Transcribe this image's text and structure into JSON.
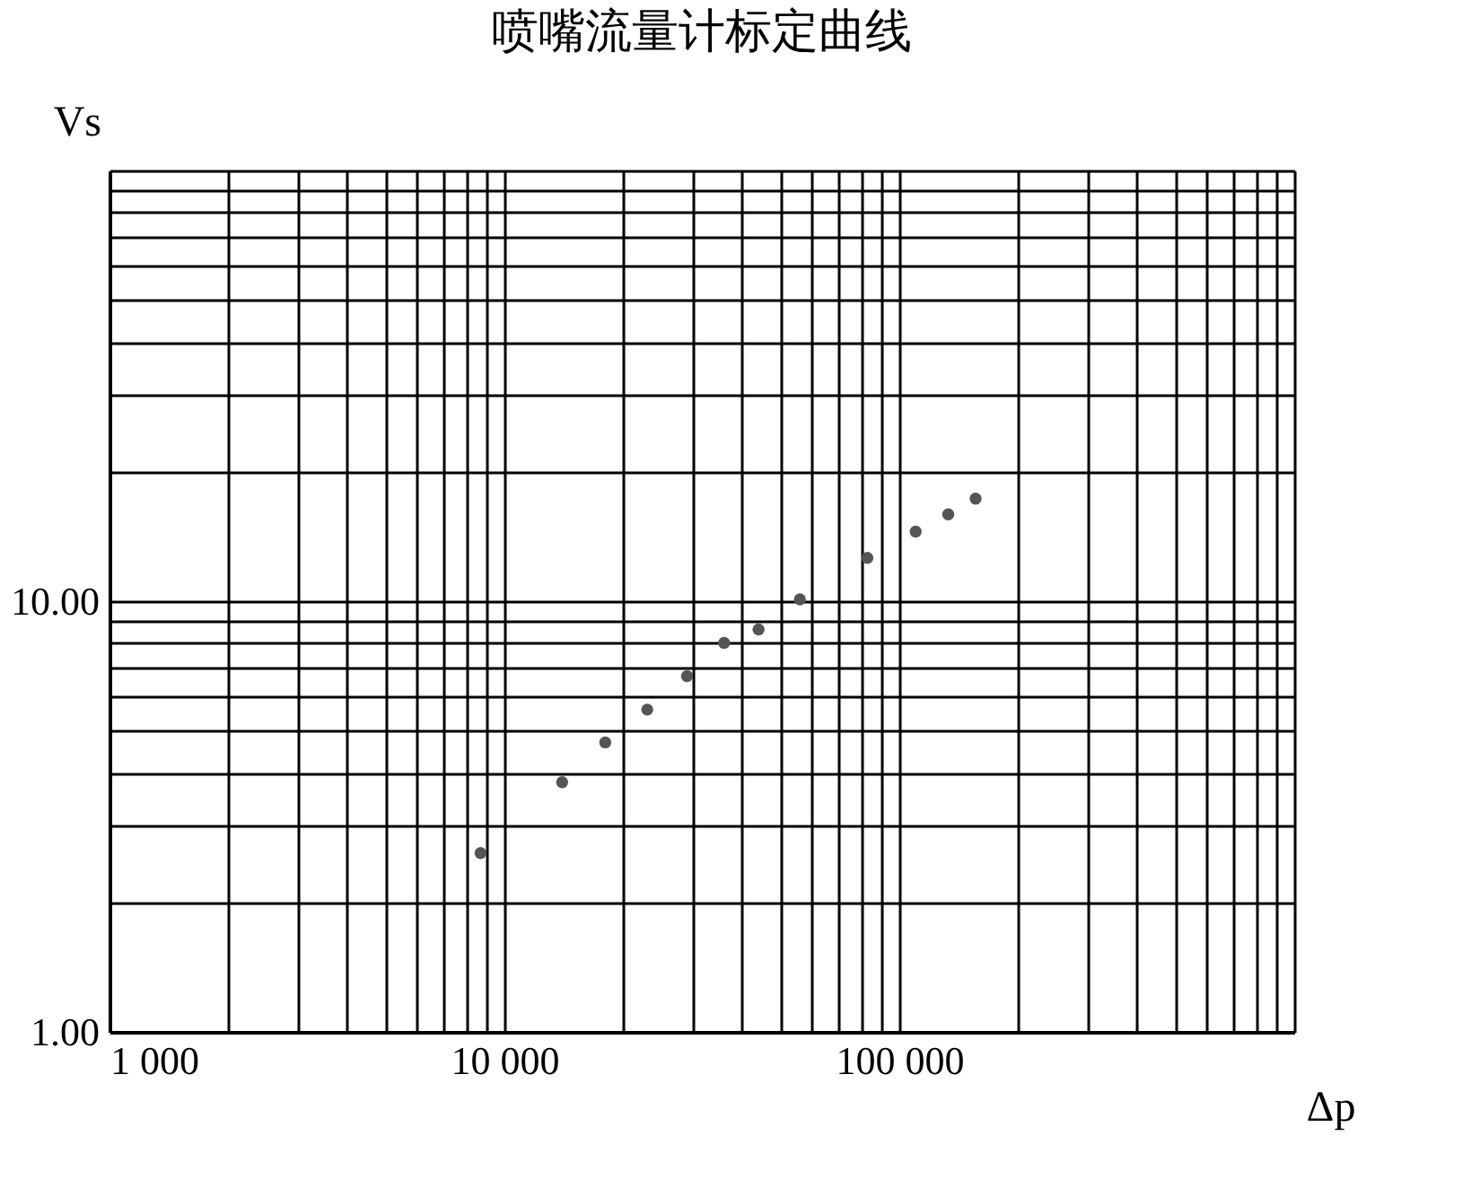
{
  "chart_data": {
    "type": "scatter",
    "title": "喷嘴流量计标定曲线",
    "xlabel": "Δp",
    "ylabel": "Vs",
    "log": "xy",
    "grid": true,
    "marker": "circle",
    "legend": false,
    "xlim": [
      1000,
      1000000
    ],
    "ylim": [
      1,
      100
    ],
    "xticks": [
      {
        "value": 1000,
        "label": "1 000"
      },
      {
        "value": 2000,
        "label": null
      },
      {
        "value": 3000,
        "label": null
      },
      {
        "value": 4000,
        "label": null
      },
      {
        "value": 5000,
        "label": null
      },
      {
        "value": 6000,
        "label": null
      },
      {
        "value": 7000,
        "label": null
      },
      {
        "value": 8000,
        "label": null
      },
      {
        "value": 9000,
        "label": null
      },
      {
        "value": 10000,
        "label": "10 000"
      },
      {
        "value": 20000,
        "label": null
      },
      {
        "value": 30000,
        "label": null
      },
      {
        "value": 40000,
        "label": null
      },
      {
        "value": 50000,
        "label": null
      },
      {
        "value": 60000,
        "label": null
      },
      {
        "value": 70000,
        "label": null
      },
      {
        "value": 80000,
        "label": null
      },
      {
        "value": 90000,
        "label": null
      },
      {
        "value": 100000,
        "label": "100 000"
      },
      {
        "value": 200000,
        "label": null
      },
      {
        "value": 300000,
        "label": null
      },
      {
        "value": 400000,
        "label": null
      },
      {
        "value": 500000,
        "label": null
      },
      {
        "value": 600000,
        "label": null
      },
      {
        "value": 700000,
        "label": null
      },
      {
        "value": 800000,
        "label": null
      },
      {
        "value": 900000,
        "label": null
      },
      {
        "value": 1000000,
        "label": null
      }
    ],
    "yticks": [
      {
        "value": 1,
        "label": "1.00"
      },
      {
        "value": 2,
        "label": null
      },
      {
        "value": 3,
        "label": null
      },
      {
        "value": 4,
        "label": null
      },
      {
        "value": 5,
        "label": null
      },
      {
        "value": 6,
        "label": null
      },
      {
        "value": 7,
        "label": null
      },
      {
        "value": 8,
        "label": null
      },
      {
        "value": 9,
        "label": null
      },
      {
        "value": 10,
        "label": "10.00"
      },
      {
        "value": 20,
        "label": null
      },
      {
        "value": 30,
        "label": null
      },
      {
        "value": 40,
        "label": null
      },
      {
        "value": 50,
        "label": null
      },
      {
        "value": 60,
        "label": null
      },
      {
        "value": 70,
        "label": null
      },
      {
        "value": 80,
        "label": null
      },
      {
        "value": 90,
        "label": null
      },
      {
        "value": 100,
        "label": null
      }
    ],
    "x": [
      8700,
      14000,
      18000,
      23000,
      29000,
      36000,
      44000,
      56000,
      83000,
      110000,
      133000,
      156000
    ],
    "series": [
      {
        "color": "#555555",
        "values": [
          2.6,
          3.8,
          4.7,
          5.6,
          6.7,
          8.0,
          8.6,
          10.1,
          12.6,
          14.5,
          15.9,
          17.3
        ]
      }
    ]
  }
}
